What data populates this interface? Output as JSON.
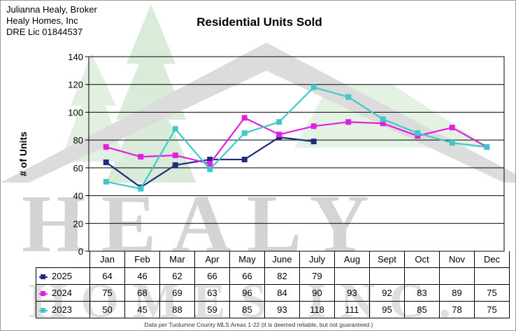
{
  "broker": {
    "line1": "Julianna Healy, Broker",
    "line2": "Healy Homes, Inc",
    "line3": "DRE Lic 01844537"
  },
  "watermark": {
    "word1": "HEALY",
    "word2": "HOMES INC."
  },
  "footnote": "Data per Tuolumne County MLS Areas 1-22 (it is deemed reliable, but not guaranteed.)",
  "colors": {
    "s2025": "#1f2a80",
    "s2024": "#e020e0",
    "s2023": "#40c8c8"
  },
  "chart_data": {
    "type": "line",
    "title": "Residential Units Sold",
    "xlabel": "",
    "ylabel": "# of Units",
    "ylim": [
      0,
      140
    ],
    "yticks": [
      0,
      20,
      40,
      60,
      80,
      100,
      120,
      140
    ],
    "grid": true,
    "legend": "table-below",
    "categories": [
      "Jan",
      "Feb",
      "Mar",
      "Apr",
      "May",
      "June",
      "July",
      "Aug",
      "Sept",
      "Oct",
      "Nov",
      "Dec"
    ],
    "series": [
      {
        "name": "2025",
        "color": "#1f2a80",
        "values": [
          64,
          46,
          62,
          66,
          66,
          82,
          79,
          null,
          null,
          null,
          null,
          null
        ]
      },
      {
        "name": "2024",
        "color": "#e020e0",
        "values": [
          75,
          68,
          69,
          63,
          96,
          84,
          90,
          93,
          92,
          83,
          89,
          75
        ]
      },
      {
        "name": "2023",
        "color": "#40c8c8",
        "values": [
          50,
          45,
          88,
          59,
          85,
          93,
          118,
          111,
          95,
          85,
          78,
          75
        ]
      }
    ]
  }
}
